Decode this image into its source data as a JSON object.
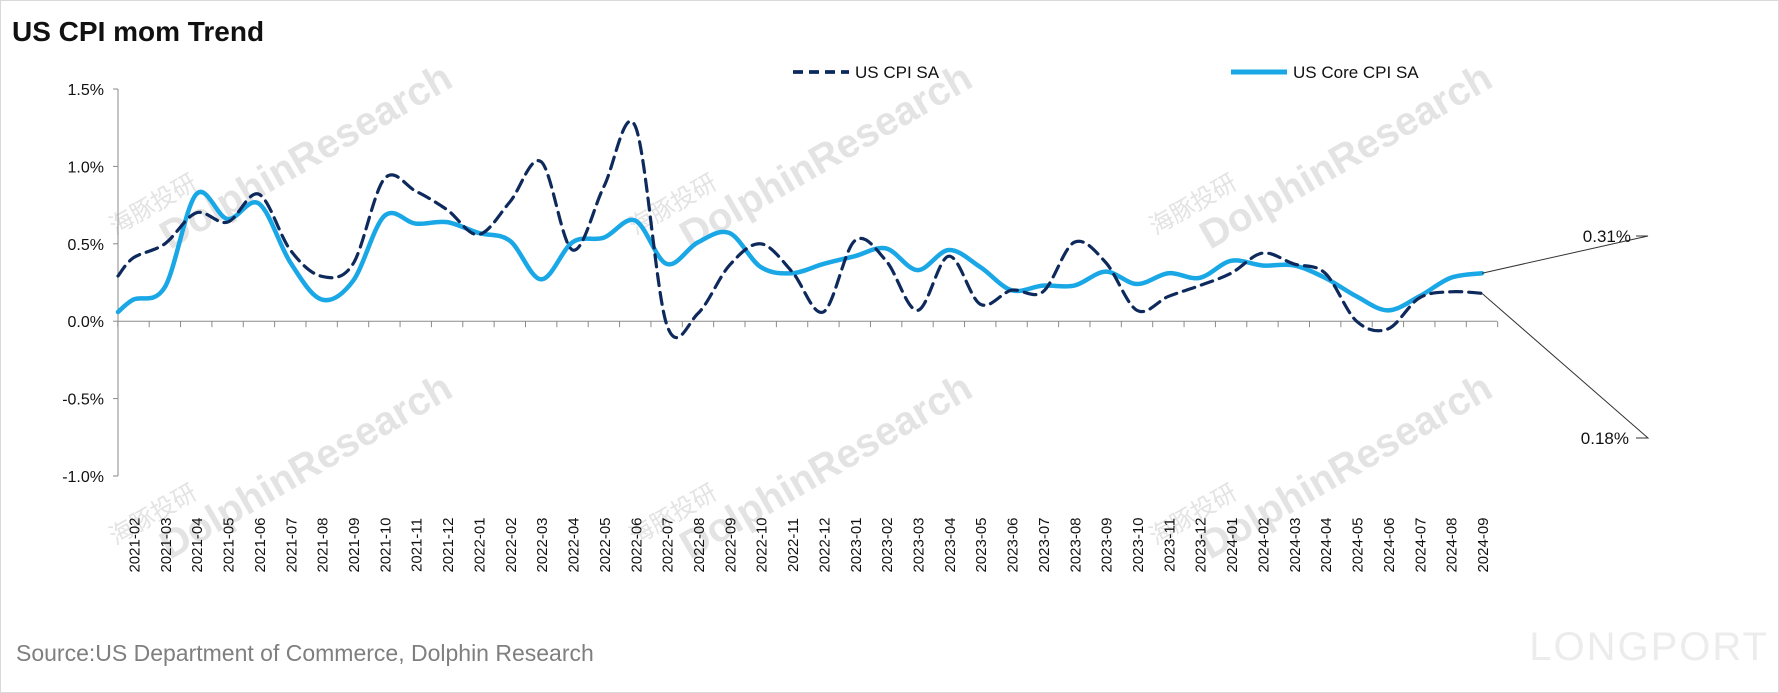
{
  "title": "US CPI mom Trend",
  "source": "Source:US Department of Commerce, Dolphin Research",
  "watermark": {
    "brand": "DolphinResearch",
    "brand_cn": "海豚投研",
    "logo": "LONGPORT"
  },
  "colors": {
    "cpi": "#0e2a5c",
    "core": "#1aa7e6",
    "axis": "#8a8a8a",
    "text": "#111111",
    "source": "#7f7f7f",
    "watermark": "#e3e3e3"
  },
  "chart_data": {
    "type": "line",
    "title": "US CPI mom Trend",
    "xlabel": "",
    "ylabel": "",
    "ylim": [
      -1.0,
      1.5
    ],
    "yticks": [
      -1.0,
      -0.5,
      0.0,
      0.5,
      1.0,
      1.5
    ],
    "ytick_labels": [
      "-1.0%",
      "-0.5%",
      "0.0%",
      "0.5%",
      "1.0%",
      "1.5%"
    ],
    "grid": false,
    "legend_position": "top-center",
    "categories": [
      "2021-02",
      "2021-03",
      "2021-04",
      "2021-05",
      "2021-06",
      "2021-07",
      "2021-08",
      "2021-09",
      "2021-10",
      "2021-11",
      "2021-12",
      "2022-01",
      "2022-02",
      "2022-03",
      "2022-04",
      "2022-05",
      "2022-06",
      "2022-07",
      "2022-08",
      "2022-09",
      "2022-10",
      "2022-11",
      "2022-12",
      "2023-01",
      "2023-02",
      "2023-03",
      "2023-04",
      "2023-05",
      "2023-06",
      "2023-07",
      "2023-08",
      "2023-09",
      "2023-10",
      "2023-11",
      "2023-12",
      "2024-01",
      "2024-02",
      "2024-03",
      "2024-04",
      "2024-05",
      "2024-06",
      "2024-07",
      "2024-08",
      "2024-09"
    ],
    "series": [
      {
        "name": "US CPI SA",
        "style": "dashed",
        "values": [
          0.41,
          0.5,
          0.7,
          0.64,
          0.82,
          0.46,
          0.29,
          0.37,
          0.92,
          0.84,
          0.72,
          0.56,
          0.77,
          1.03,
          0.46,
          0.87,
          1.26,
          -0.02,
          0.05,
          0.36,
          0.5,
          0.32,
          0.06,
          0.52,
          0.39,
          0.07,
          0.42,
          0.11,
          0.2,
          0.19,
          0.51,
          0.38,
          0.07,
          0.16,
          0.23,
          0.31,
          0.44,
          0.37,
          0.31,
          0.0,
          -0.05,
          0.15,
          0.19,
          0.18
        ]
      },
      {
        "name": "US Core CPI SA",
        "style": "solid",
        "values": [
          0.14,
          0.22,
          0.82,
          0.66,
          0.76,
          0.38,
          0.14,
          0.26,
          0.68,
          0.63,
          0.64,
          0.57,
          0.52,
          0.27,
          0.51,
          0.54,
          0.65,
          0.37,
          0.51,
          0.57,
          0.35,
          0.31,
          0.37,
          0.42,
          0.47,
          0.33,
          0.46,
          0.35,
          0.2,
          0.23,
          0.23,
          0.32,
          0.24,
          0.31,
          0.28,
          0.39,
          0.36,
          0.36,
          0.28,
          0.16,
          0.07,
          0.16,
          0.28,
          0.31
        ]
      }
    ],
    "annotations": [
      {
        "label": "0.31%",
        "series": "US Core CPI SA",
        "category": "2024-09"
      },
      {
        "label": "0.18%",
        "series": "US CPI SA",
        "category": "2024-09"
      }
    ]
  }
}
